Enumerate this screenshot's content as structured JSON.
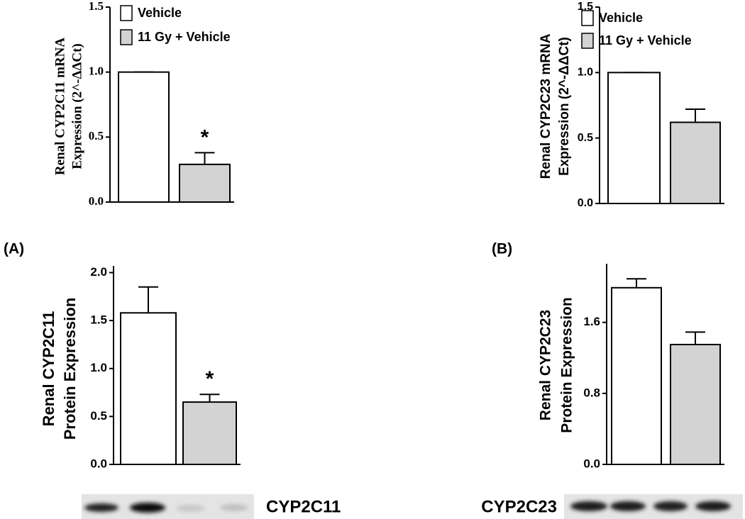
{
  "chart_data": [
    {
      "type": "bar",
      "ylabel": [
        "Renal CYP2C11 mRNA",
        "Expression (2^-ΔΔCt)"
      ],
      "series": [
        {
          "name": "Vehicle",
          "color": "#ffffff",
          "values": [
            1.0
          ],
          "errors": [
            0
          ]
        },
        {
          "name": "11 Gy + Vehicle",
          "color": "#d3d3d3",
          "values": [
            0.29
          ],
          "errors": [
            0.09
          ]
        }
      ],
      "annotation": "*",
      "ylim": [
        0,
        1.5
      ],
      "yticks": [
        {
          "value": 0,
          "label": "0.0"
        },
        {
          "value": 0.5,
          "label": "0.5"
        },
        {
          "value": 1,
          "label": "1.0"
        },
        {
          "value": 1.5,
          "label": "1.5"
        }
      ]
    },
    {
      "type": "bar",
      "ylabel": [
        "Renal CYP2C23 mRNA",
        "Expression (2^-ΔΔCt)"
      ],
      "series": [
        {
          "name": "Vehicle",
          "color": "#ffffff",
          "values": [
            1.0
          ],
          "errors": [
            0
          ]
        },
        {
          "name": "11 Gy + Vehicle",
          "color": "#d3d3d3",
          "values": [
            0.62
          ],
          "errors": [
            0.1
          ]
        }
      ],
      "ylim": [
        0,
        1.5
      ],
      "yticks": [
        {
          "value": 0,
          "label": "0.0"
        },
        {
          "value": 0.5,
          "label": "0.5"
        },
        {
          "value": 1,
          "label": "1.0"
        },
        {
          "value": 1.5,
          "label": "1.5"
        }
      ]
    },
    {
      "type": "bar",
      "panel_label": "(A)",
      "ylabel": [
        "Renal CYP2C11",
        "Protein  Expression"
      ],
      "values": [
        1.58,
        0.65
      ],
      "errors": [
        0.27,
        0.08
      ],
      "colors": [
        "#ffffff",
        "#d3d3d3"
      ],
      "annotation": "*",
      "blot_label": "CYP2C11",
      "ylim": [
        0,
        2.07
      ],
      "yticks": [
        {
          "value": 0,
          "label": "0.0"
        },
        {
          "value": 0.5,
          "label": "0.5"
        },
        {
          "value": 1,
          "label": "1.0"
        },
        {
          "value": 1.5,
          "label": "1.5"
        },
        {
          "value": 2,
          "label": "2.0"
        }
      ]
    },
    {
      "type": "bar",
      "panel_label": "(B)",
      "ylabel": [
        "Renal CYP2C23",
        "Protein Expression"
      ],
      "values": [
        1.99,
        1.35
      ],
      "errors": [
        0.1,
        0.14
      ],
      "colors": [
        "#ffffff",
        "#d3d3d3"
      ],
      "blot_label": "CYP2C23",
      "ylim": [
        0,
        2.26
      ],
      "yticks": [
        {
          "value": 0,
          "label": "0.0"
        },
        {
          "value": 0.8,
          "label": "0.8"
        },
        {
          "value": 1.6,
          "label": "1.6"
        }
      ]
    }
  ]
}
